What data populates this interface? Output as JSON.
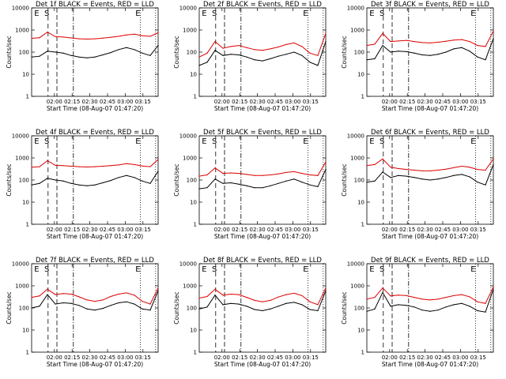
{
  "colors": {
    "events": "#000000",
    "lld": "#dd0000",
    "frame": "#000000"
  },
  "axes": {
    "xlabel": "Start Time (08-Aug-07 01:47:20)",
    "ylabel": "Counts/sec",
    "xticks": [
      "02:00",
      "02:15",
      "02:30",
      "02:45",
      "03:00",
      "03:15"
    ],
    "yticks": [
      "1",
      "10",
      "100",
      "1000",
      "10000"
    ],
    "yscale": "log",
    "ylim": [
      1,
      10000
    ]
  },
  "chart_data": [
    {
      "type": "line",
      "title": "Det 1f BLACK = Events, RED = LLD",
      "series": [
        {
          "key": "lld",
          "values": [
            420,
            450,
            800,
            500,
            480,
            440,
            400,
            390,
            400,
            430,
            470,
            520,
            600,
            650,
            550,
            520,
            750
          ]
        },
        {
          "key": "events",
          "values": [
            60,
            65,
            110,
            100,
            90,
            70,
            60,
            55,
            60,
            75,
            95,
            130,
            160,
            130,
            90,
            70,
            200
          ]
        }
      ],
      "markers": [
        "E",
        "S",
        "E"
      ]
    },
    {
      "type": "line",
      "title": "Det 2f BLACK = Events, RED = LLD",
      "series": [
        {
          "key": "lld",
          "values": [
            60,
            90,
            300,
            150,
            180,
            200,
            160,
            130,
            120,
            140,
            170,
            220,
            260,
            180,
            90,
            70,
            700
          ]
        },
        {
          "key": "events",
          "values": [
            25,
            35,
            120,
            70,
            80,
            75,
            60,
            45,
            40,
            50,
            65,
            80,
            100,
            70,
            35,
            25,
            300
          ]
        }
      ],
      "markers": [
        "E",
        "S",
        "E"
      ]
    },
    {
      "type": "line",
      "title": "Det 3f BLACK = Events, RED = LLD",
      "series": [
        {
          "key": "lld",
          "values": [
            200,
            230,
            700,
            300,
            320,
            340,
            300,
            270,
            260,
            280,
            310,
            350,
            370,
            300,
            200,
            180,
            900
          ]
        },
        {
          "key": "events",
          "values": [
            45,
            50,
            200,
            100,
            110,
            105,
            90,
            75,
            70,
            80,
            100,
            140,
            160,
            110,
            60,
            45,
            400
          ]
        }
      ],
      "markers": [
        "E",
        "S",
        "E"
      ]
    },
    {
      "type": "line",
      "title": "Det 4f BLACK = Events, RED = LLD",
      "series": [
        {
          "key": "lld",
          "values": [
            380,
            400,
            750,
            460,
            450,
            420,
            400,
            390,
            400,
            420,
            450,
            480,
            550,
            500,
            430,
            400,
            850
          ]
        },
        {
          "key": "events",
          "values": [
            60,
            70,
            120,
            100,
            90,
            70,
            60,
            55,
            60,
            75,
            95,
            130,
            160,
            130,
            90,
            70,
            250
          ]
        }
      ],
      "markers": [
        "E",
        "S",
        "E"
      ]
    },
    {
      "type": "line",
      "title": "Det 5f BLACK = Events, RED = LLD",
      "series": [
        {
          "key": "lld",
          "values": [
            150,
            170,
            350,
            200,
            210,
            200,
            180,
            160,
            160,
            170,
            190,
            220,
            240,
            200,
            170,
            160,
            650
          ]
        },
        {
          "key": "events",
          "values": [
            40,
            45,
            110,
            70,
            75,
            65,
            55,
            45,
            45,
            55,
            70,
            90,
            110,
            80,
            60,
            50,
            300
          ]
        }
      ],
      "markers": [
        "E",
        "S",
        "E"
      ]
    },
    {
      "type": "line",
      "title": "Det 6f BLACK = Events, RED = LLD",
      "series": [
        {
          "key": "lld",
          "values": [
            450,
            500,
            900,
            380,
            330,
            300,
            280,
            260,
            260,
            280,
            310,
            360,
            420,
            380,
            300,
            280,
            900
          ]
        },
        {
          "key": "events",
          "values": [
            80,
            90,
            230,
            130,
            160,
            150,
            130,
            110,
            100,
            110,
            130,
            160,
            180,
            140,
            80,
            60,
            500
          ]
        }
      ],
      "markers": [
        "E",
        "S",
        "E"
      ]
    },
    {
      "type": "line",
      "title": "Det 7f BLACK = Events, RED = LLD",
      "series": [
        {
          "key": "lld",
          "values": [
            300,
            350,
            700,
            400,
            450,
            420,
            320,
            230,
            200,
            230,
            330,
            420,
            480,
            380,
            200,
            150,
            800
          ]
        },
        {
          "key": "events",
          "values": [
            100,
            120,
            400,
            150,
            170,
            160,
            130,
            90,
            80,
            95,
            130,
            170,
            190,
            150,
            90,
            80,
            600
          ]
        }
      ],
      "markers": [
        "E",
        "S",
        "E"
      ]
    },
    {
      "type": "line",
      "title": "Det 8f BLACK = Events, RED = LLD",
      "series": [
        {
          "key": "lld",
          "values": [
            280,
            330,
            700,
            380,
            420,
            400,
            300,
            220,
            190,
            220,
            310,
            400,
            460,
            360,
            190,
            140,
            800
          ]
        },
        {
          "key": "events",
          "values": [
            90,
            110,
            380,
            140,
            160,
            150,
            120,
            85,
            75,
            90,
            120,
            160,
            180,
            140,
            85,
            75,
            600
          ]
        }
      ],
      "markers": [
        "E",
        "S",
        "E"
      ]
    },
    {
      "type": "line",
      "title": "Det 9f BLACK = Events, RED = LLD",
      "series": [
        {
          "key": "lld",
          "values": [
            250,
            300,
            800,
            350,
            380,
            360,
            300,
            250,
            230,
            250,
            300,
            360,
            400,
            320,
            190,
            160,
            900
          ]
        },
        {
          "key": "events",
          "values": [
            70,
            90,
            500,
            120,
            140,
            130,
            110,
            80,
            70,
            80,
            110,
            140,
            160,
            120,
            75,
            65,
            700
          ]
        }
      ],
      "markers": [
        "E",
        "S",
        "E"
      ]
    }
  ]
}
